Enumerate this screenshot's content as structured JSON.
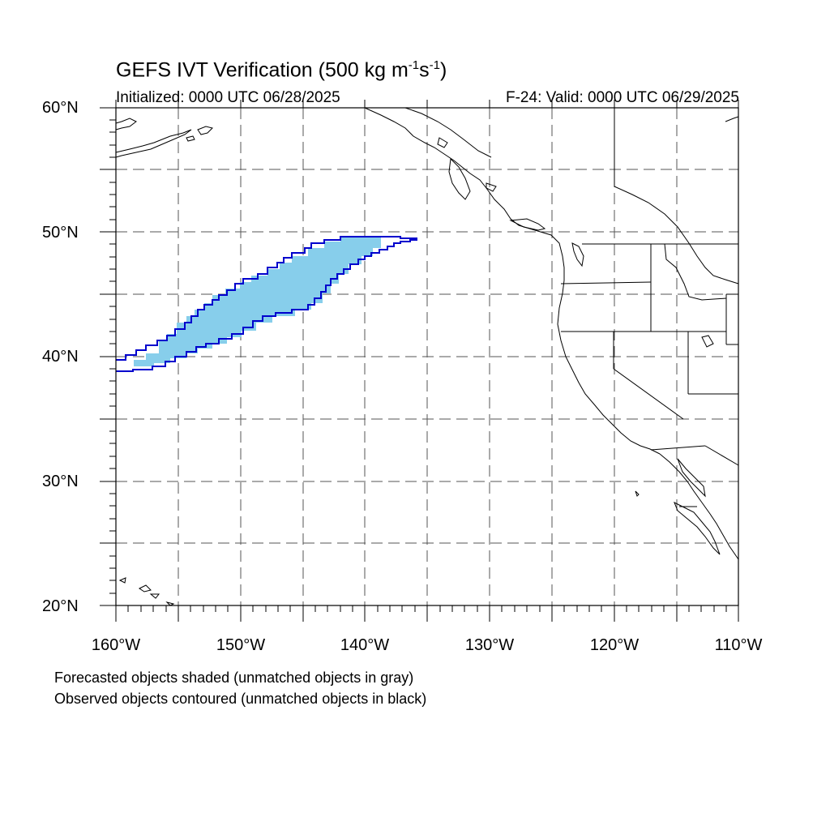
{
  "title": {
    "text": "GEFS IVT Verification (500 kg m",
    "sup1": "-1",
    "mid": "s",
    "sup2": "-1",
    "close": ")"
  },
  "initialized": "Initialized: 0000 UTC 06/28/2025",
  "valid": "F-24: Valid: 0000 UTC 06/29/2025",
  "lat_labels": [
    "60°N",
    "50°N",
    "40°N",
    "30°N",
    "20°N"
  ],
  "lon_labels": [
    "160°W",
    "150°W",
    "140°W",
    "130°W",
    "120°W",
    "110°W"
  ],
  "legend": [
    "Forecasted objects shaded (unmatched objects in gray)",
    "Observed objects contoured (unmatched objects in black)"
  ],
  "colors": {
    "forecast_fill": "#87CEEB",
    "observed_contour": "#0000CD",
    "coastline": "#000000",
    "grid": "#555555"
  }
}
